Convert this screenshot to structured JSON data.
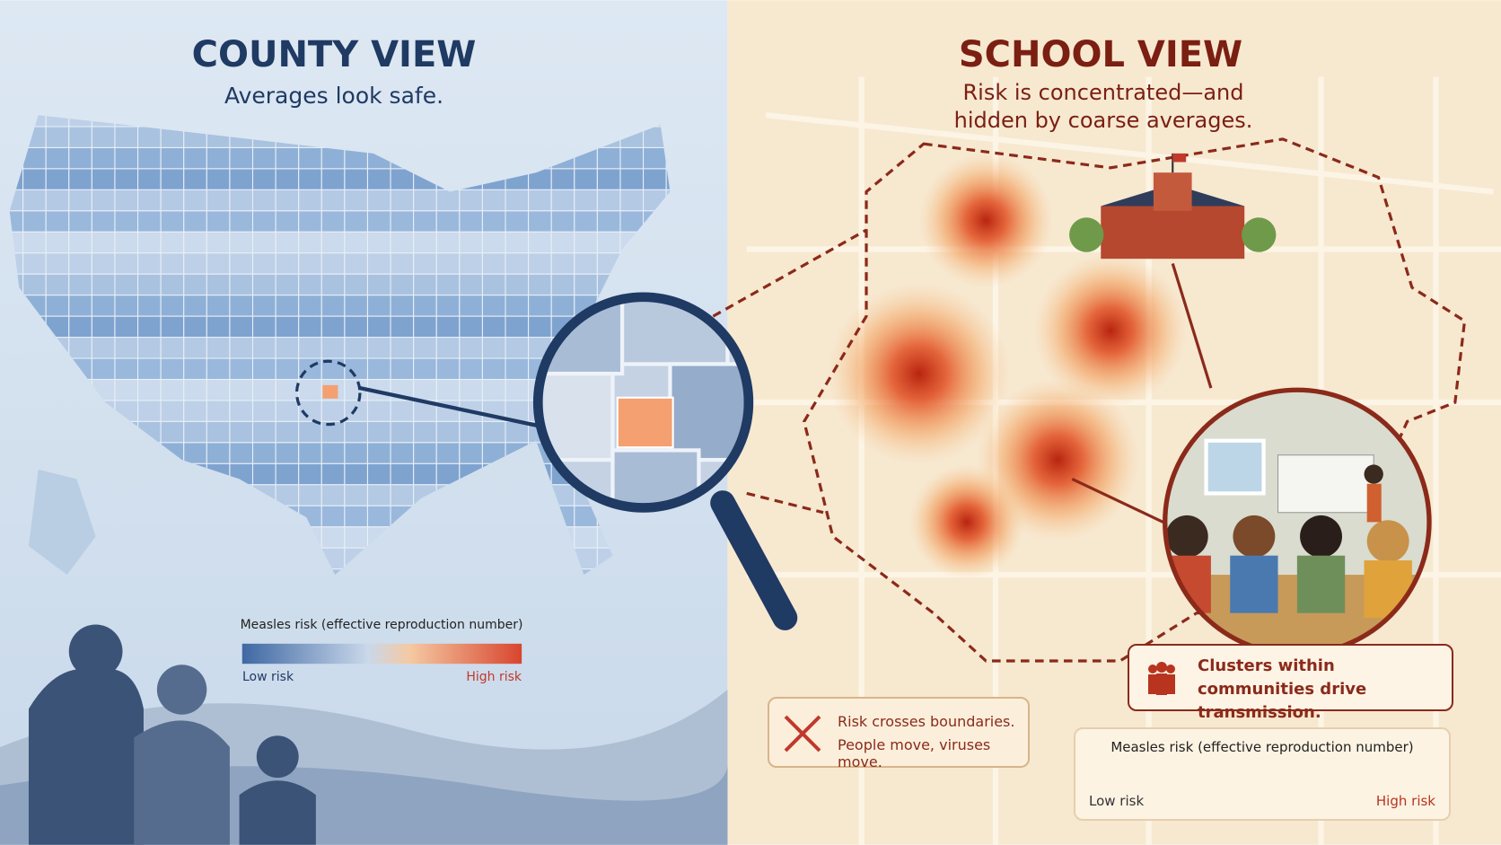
{
  "left": {
    "title": "COUNTY VIEW",
    "subtitle": "Averages look safe.",
    "legend": {
      "title": "Measles risk (effective reproduction number)",
      "low": "Low risk",
      "high": "High risk"
    }
  },
  "right": {
    "title": "SCHOOL VIEW",
    "subtitle": "Risk is concentrated—and hidden by coarse averages.",
    "callouts": [
      {
        "text": "Clusters within communities drive transmission."
      },
      {
        "title": "Risk crosses boundaries.",
        "text": "People move, viruses move."
      }
    ],
    "legend": {
      "title": "Measles risk (effective reproduction number)",
      "low": "Low risk",
      "high": "High risk"
    }
  }
}
